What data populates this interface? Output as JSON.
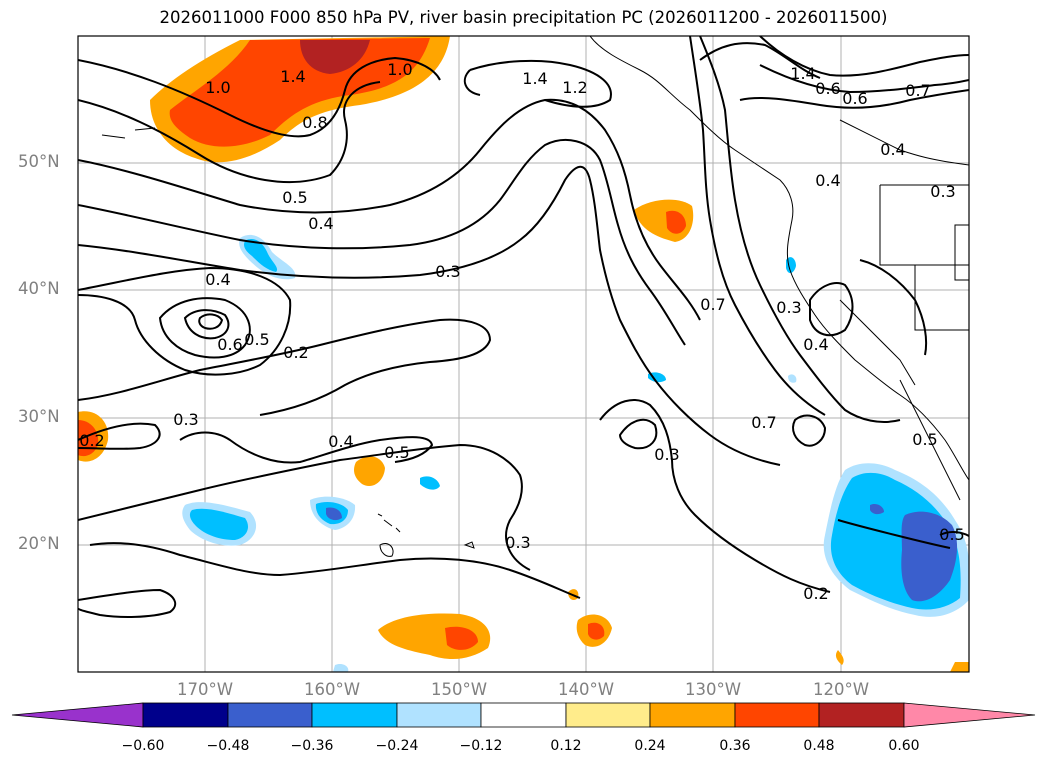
{
  "title": "2026011000 F000 850 hPa PV, river basin precipitation PC (2026011200 - 2026011500)",
  "lat_labels": [
    "50°N",
    "40°N",
    "30°N",
    "20°N"
  ],
  "lon_labels": [
    "170°W",
    "160°W",
    "150°W",
    "140°W",
    "130°W",
    "120°W"
  ],
  "contour_labels": [
    "1.0",
    "1.4",
    "1.0",
    "0.8",
    "1.4",
    "1.2",
    "1.4",
    "0.6",
    "0.6",
    "0.7",
    "0.4",
    "0.4",
    "0.3",
    "0.5",
    "0.4",
    "0.3",
    "0.4",
    "0.6",
    "0.5",
    "0.2",
    "0.7",
    "0.3",
    "0.4",
    "0.3",
    "0.2",
    "0.4",
    "0.5",
    "0.3",
    "0.7",
    "0.5",
    "0.3",
    "0.2",
    "0.5"
  ],
  "colorbar": {
    "ticks": [
      "−0.60",
      "−0.48",
      "−0.36",
      "−0.24",
      "−0.12",
      "0.12",
      "0.24",
      "0.36",
      "0.48",
      "0.60"
    ],
    "colors": [
      "#9932cc",
      "#00008b",
      "#3a5fcd",
      "#00bfff",
      "#b0e2ff",
      "#ffffff",
      "#ffec8b",
      "#ffa500",
      "#ff4500",
      "#b22222",
      "#ff88a8"
    ]
  }
}
